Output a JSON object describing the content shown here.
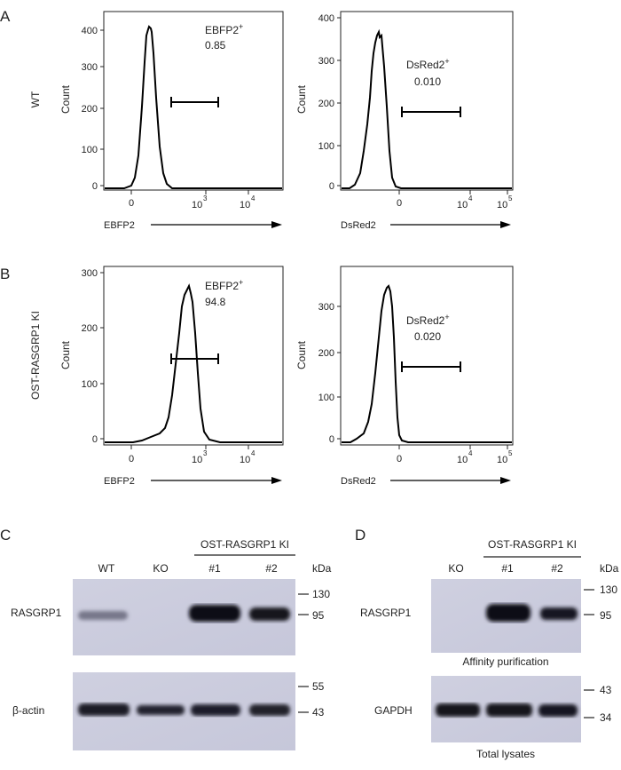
{
  "panels": {
    "A": {
      "letter": "A",
      "row_label": "WT",
      "plots": [
        {
          "ylabel": "Count",
          "yticks": [
            "0",
            "100",
            "200",
            "300",
            "400"
          ],
          "xticks": [
            "0",
            "10",
            "3",
            "10",
            "4"
          ],
          "xaxis_label": "EBFP2",
          "gate_name": "EBFP2",
          "gate_sup": "+",
          "gate_value": "0.85"
        },
        {
          "ylabel": "Count",
          "yticks": [
            "0",
            "100",
            "200",
            "300",
            "400"
          ],
          "xticks": [
            "0",
            "10",
            "4",
            "10",
            "5"
          ],
          "xaxis_label": "DsRed2",
          "gate_name": "DsRed2",
          "gate_sup": "+",
          "gate_value": "0.010"
        }
      ]
    },
    "B": {
      "letter": "B",
      "row_label": "OST-RASGRP1 KI",
      "plots": [
        {
          "ylabel": "Count",
          "yticks": [
            "0",
            "100",
            "200",
            "300"
          ],
          "xticks": [
            "0",
            "10",
            "3",
            "10",
            "4"
          ],
          "xaxis_label": "EBFP2",
          "gate_name": "EBFP2",
          "gate_sup": "+",
          "gate_value": "94.8"
        },
        {
          "ylabel": "Count",
          "yticks": [
            "0",
            "100",
            "200",
            "300"
          ],
          "xticks": [
            "0",
            "10",
            "4",
            "10",
            "5"
          ],
          "xaxis_label": "DsRed2",
          "gate_name": "DsRed2",
          "gate_sup": "+",
          "gate_value": "0.020"
        }
      ]
    },
    "C": {
      "letter": "C",
      "group_label": "OST-RASGRP1 KI",
      "lanes": [
        "WT",
        "KO",
        "#1",
        "#2"
      ],
      "kda_label": "kDa",
      "blot1_label": "RASGRP1",
      "blot1_markers": [
        "130",
        "95"
      ],
      "blot2_label": "β-actin",
      "blot2_markers": [
        "55",
        "43"
      ]
    },
    "D": {
      "letter": "D",
      "group_label": "OST-RASGRP1 KI",
      "lanes": [
        "KO",
        "#1",
        "#2"
      ],
      "kda_label": "kDa",
      "blot1_label": "RASGRP1",
      "blot1_markers": [
        "130",
        "95"
      ],
      "blot1_caption": "Affinity purification",
      "blot2_label": "GAPDH",
      "blot2_markers": [
        "43",
        "34"
      ],
      "blot2_caption": "Total lysates"
    }
  }
}
